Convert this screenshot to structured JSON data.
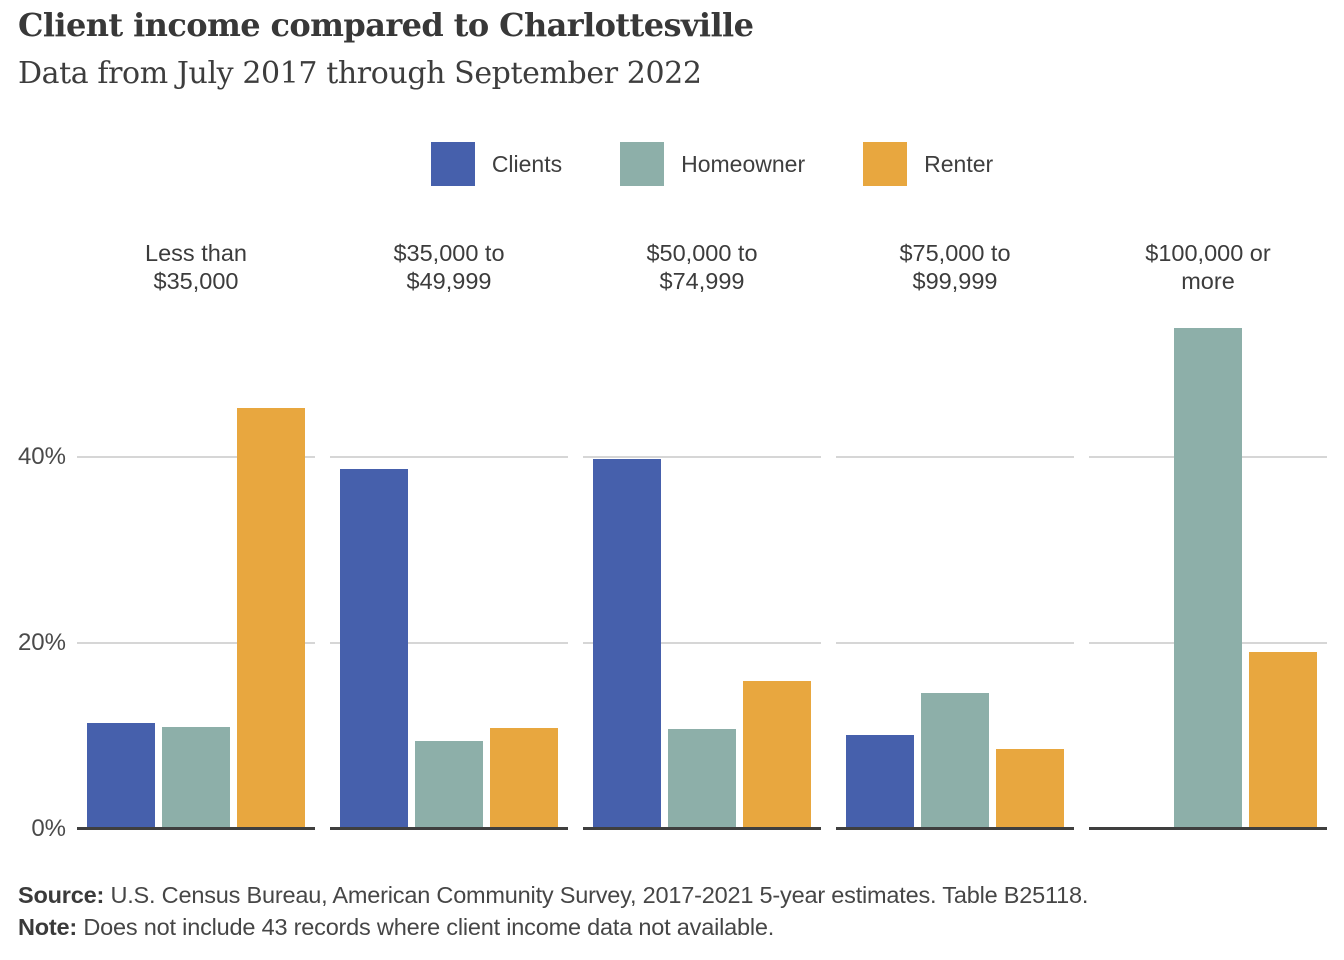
{
  "header": {
    "title": "Client income compared to Charlottesville",
    "subtitle": "Data from July 2017 through September 2022"
  },
  "legend": [
    {
      "label": "Clients",
      "color": "#4660AC"
    },
    {
      "label": "Homeowner",
      "color": "#8DAFA9"
    },
    {
      "label": "Renter",
      "color": "#E8A73F"
    }
  ],
  "y_axis": {
    "ticks": [
      {
        "label": "0%",
        "value": 0
      },
      {
        "label": "20%",
        "value": 20
      },
      {
        "label": "40%",
        "value": 40
      }
    ]
  },
  "chart_data": {
    "type": "bar",
    "faceted": true,
    "title": "Client income compared to Charlottesville",
    "subtitle": "Data from July 2017 through September 2022",
    "categories": [
      "Less than $35,000",
      "$35,000 to $49,999",
      "$50,000 to $74,999",
      "$75,000 to $99,999",
      "$100,000 or more"
    ],
    "category_label_lines": [
      [
        "Less than",
        "$35,000"
      ],
      [
        "$35,000 to",
        "$49,999"
      ],
      [
        "$50,000 to",
        "$74,999"
      ],
      [
        "$75,000 to",
        "$99,999"
      ],
      [
        "$100,000 or",
        "more"
      ]
    ],
    "series": [
      {
        "name": "Clients",
        "color": "#4660AC",
        "values": [
          11.4,
          38.7,
          39.8,
          10.1,
          0.0
        ]
      },
      {
        "name": "Homeowner",
        "color": "#8DAFA9",
        "values": [
          11.0,
          9.5,
          10.8,
          14.6,
          53.9
        ]
      },
      {
        "name": "Renter",
        "color": "#E8A73F",
        "values": [
          45.3,
          10.9,
          15.9,
          8.6,
          19.0
        ]
      }
    ],
    "xlabel": "",
    "ylabel": "",
    "ylim": [
      0,
      56.9
    ],
    "gridlines_at": [
      20,
      40
    ],
    "grid": true,
    "legend_position": "top"
  },
  "footer": {
    "source_label": "Source:",
    "source_text": "U.S. Census Bureau, American Community Survey, 2017-2021 5-year estimates. Table B25118.",
    "note_label": "Note:",
    "note_text": "Does not include 43 records where client income data not available."
  },
  "colors": {
    "axis_line": "#3f3f3f",
    "gridline": "#d6d6d6",
    "text": "#3c3c3c"
  }
}
